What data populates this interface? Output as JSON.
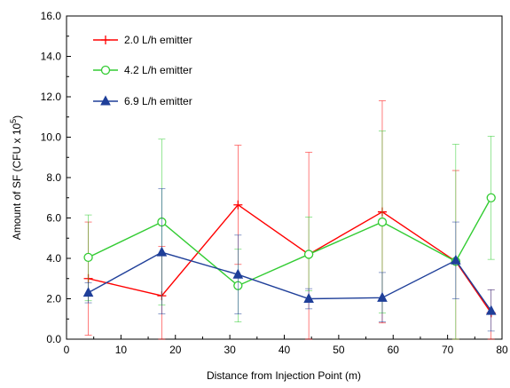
{
  "chart_data": {
    "type": "line",
    "xlabel": "Distance from Injection Point (m)",
    "ylabel": "Amount of SF (CFU x 10",
    "ylabel_sup": "5",
    "ylabel_tail": ")",
    "xlim": [
      0,
      80
    ],
    "ylim": [
      0,
      16
    ],
    "x_ticks": [
      0,
      10,
      20,
      30,
      40,
      50,
      60,
      70,
      80
    ],
    "y_ticks": [
      0,
      2,
      4,
      6,
      8,
      10,
      12,
      14,
      16
    ],
    "x_tick_labels": [
      "0",
      "10",
      "20",
      "30",
      "40",
      "50",
      "60",
      "70",
      "80"
    ],
    "y_tick_labels": [
      "0.0",
      "2.0",
      "4.0",
      "6.0",
      "8.0",
      "10.0",
      "12.0",
      "14.0",
      "16.0"
    ],
    "grid": false,
    "legend_position": "top-left",
    "series": [
      {
        "name": "2.0 L/h emitter",
        "color": "#ff0000",
        "marker": "plus",
        "x": [
          4,
          17.5,
          31.5,
          44.5,
          58,
          71.5,
          78
        ],
        "y": [
          3.0,
          2.15,
          6.65,
          4.2,
          6.3,
          3.85,
          1.3
        ],
        "err_low": [
          0.2,
          0.0,
          3.7,
          0.0,
          0.8,
          0.0,
          0.0
        ],
        "err_high": [
          5.8,
          4.6,
          9.6,
          9.25,
          11.8,
          8.35,
          2.45
        ]
      },
      {
        "name": "4.2 L/h emitter",
        "color": "#33cc33",
        "marker": "circle",
        "x": [
          4,
          17.5,
          31.5,
          44.5,
          58,
          71.5,
          78
        ],
        "y": [
          4.05,
          5.8,
          2.65,
          4.2,
          5.8,
          3.85,
          7.0
        ],
        "err_low": [
          1.9,
          1.7,
          0.85,
          2.4,
          1.3,
          0.0,
          3.95
        ],
        "err_high": [
          6.15,
          9.9,
          4.45,
          6.05,
          10.3,
          9.65,
          10.05
        ]
      },
      {
        "name": "6.9 L/h emitter",
        "color": "#1f3f99",
        "marker": "triangle",
        "x": [
          4,
          17.5,
          31.5,
          44.5,
          58,
          71.5,
          78
        ],
        "y": [
          2.3,
          4.3,
          3.2,
          2.0,
          2.05,
          3.9,
          1.4
        ],
        "err_low": [
          1.8,
          1.25,
          1.25,
          1.5,
          0.85,
          2.0,
          0.4
        ],
        "err_high": [
          2.8,
          7.45,
          5.15,
          2.5,
          3.3,
          5.8,
          2.45
        ]
      }
    ]
  }
}
